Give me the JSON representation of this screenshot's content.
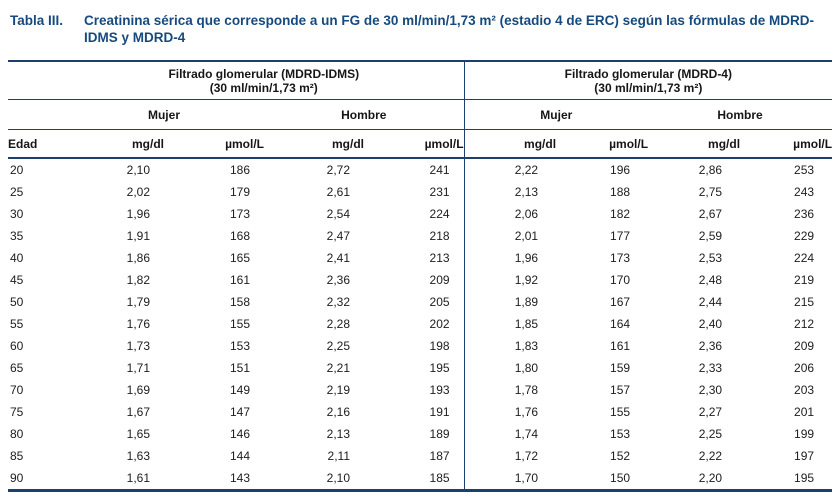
{
  "colors": {
    "title": "#164a7e",
    "rule": "#1c3f6e",
    "body_text": "#1d1d1d"
  },
  "title": {
    "label": "Tabla III.",
    "text": "Creatinina sérica que corresponde a un FG de 30 ml/min/1,73 m² (estadio 4 de ERC) según las fórmulas de MDRD-IDMS y MDRD-4"
  },
  "table": {
    "group_headers": [
      {
        "line1": "Filtrado glomerular (MDRD-IDMS)",
        "line2": "(30 ml/min/1,73 m²)"
      },
      {
        "line1": "Filtrado glomerular (MDRD-4)",
        "line2": "(30 ml/min/1,73 m²)"
      }
    ],
    "sex_headers": [
      "Mujer",
      "Hombre",
      "Mujer",
      "Hombre"
    ],
    "col_headers": [
      "Edad",
      "mg/dl",
      "µmol/L",
      "mg/dl",
      "µmol/L",
      "mg/dl",
      "µmol/L",
      "mg/dl",
      "µmol/L"
    ],
    "rows": [
      [
        "20",
        "2,10",
        "186",
        "2,72",
        "241",
        "2,22",
        "196",
        "2,86",
        "253"
      ],
      [
        "25",
        "2,02",
        "179",
        "2,61",
        "231",
        "2,13",
        "188",
        "2,75",
        "243"
      ],
      [
        "30",
        "1,96",
        "173",
        "2,54",
        "224",
        "2,06",
        "182",
        "2,67",
        "236"
      ],
      [
        "35",
        "1,91",
        "168",
        "2,47",
        "218",
        "2,01",
        "177",
        "2,59",
        "229"
      ],
      [
        "40",
        "1,86",
        "165",
        "2,41",
        "213",
        "1,96",
        "173",
        "2,53",
        "224"
      ],
      [
        "45",
        "1,82",
        "161",
        "2,36",
        "209",
        "1,92",
        "170",
        "2,48",
        "219"
      ],
      [
        "50",
        "1,79",
        "158",
        "2,32",
        "205",
        "1,89",
        "167",
        "2,44",
        "215"
      ],
      [
        "55",
        "1,76",
        "155",
        "2,28",
        "202",
        "1,85",
        "164",
        "2,40",
        "212"
      ],
      [
        "60",
        "1,73",
        "153",
        "2,25",
        "198",
        "1,83",
        "161",
        "2,36",
        "209"
      ],
      [
        "65",
        "1,71",
        "151",
        "2,21",
        "195",
        "1,80",
        "159",
        "2,33",
        "206"
      ],
      [
        "70",
        "1,69",
        "149",
        "2,19",
        "193",
        "1,78",
        "157",
        "2,30",
        "203"
      ],
      [
        "75",
        "1,67",
        "147",
        "2,16",
        "191",
        "1,76",
        "155",
        "2,27",
        "201"
      ],
      [
        "80",
        "1,65",
        "146",
        "2,13",
        "189",
        "1,74",
        "153",
        "2,25",
        "199"
      ],
      [
        "85",
        "1,63",
        "144",
        "2,11",
        "187",
        "1,72",
        "152",
        "2,22",
        "197"
      ],
      [
        "90",
        "1,61",
        "143",
        "2,10",
        "185",
        "1,70",
        "150",
        "2,20",
        "195"
      ]
    ]
  }
}
